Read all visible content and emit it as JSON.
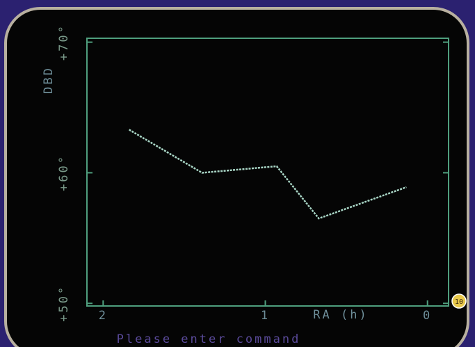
{
  "chart_data": {
    "type": "line",
    "ylabel": "DBD",
    "xlabel": "RA (h)",
    "x": [
      1.84,
      1.39,
      0.93,
      0.67,
      0.13
    ],
    "values": [
      63.3,
      60.0,
      60.5,
      56.5,
      58.9
    ],
    "color": "#a9d6c6",
    "xlim": [
      2.1,
      -0.13
    ],
    "xticks": [
      2,
      1,
      0
    ],
    "ylim": [
      49.8,
      70.3
    ],
    "yticks": [
      {
        "value": 70,
        "label": "+70°"
      },
      {
        "value": 60,
        "label": "+60°"
      },
      {
        "value": 50,
        "label": "+50°"
      }
    ],
    "footer": "Please enter command",
    "badge": "10"
  }
}
